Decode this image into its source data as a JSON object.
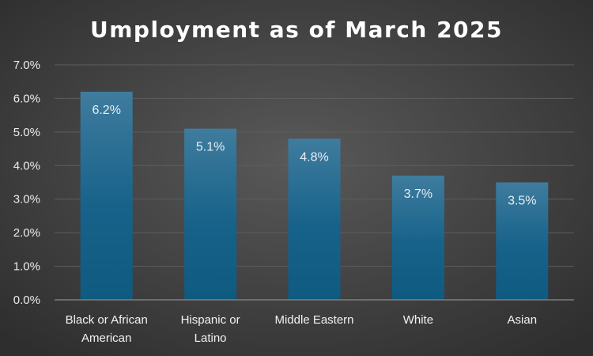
{
  "chart_data": {
    "type": "bar",
    "title": "Umployment as of March 2025",
    "categories": [
      [
        "Black or African",
        "American"
      ],
      [
        "Hispanic or",
        "Latino"
      ],
      [
        "Middle Eastern"
      ],
      [
        "White"
      ],
      [
        "Asian"
      ]
    ],
    "values": [
      6.2,
      5.1,
      4.8,
      3.7,
      3.5
    ],
    "data_labels": [
      "6.2%",
      "5.1%",
      "4.8%",
      "3.7%",
      "3.5%"
    ],
    "yticks": [
      "0.0%",
      "1.0%",
      "2.0%",
      "3.0%",
      "4.0%",
      "5.0%",
      "6.0%",
      "7.0%"
    ],
    "ylim": [
      0,
      7
    ],
    "grid": true,
    "legend": "none",
    "colors": {
      "bar_top": "#3f7c9e",
      "bar_bottom": "#0f5a80",
      "background_center": "#5a5a5a",
      "background_edge": "#2e2e2e"
    }
  }
}
